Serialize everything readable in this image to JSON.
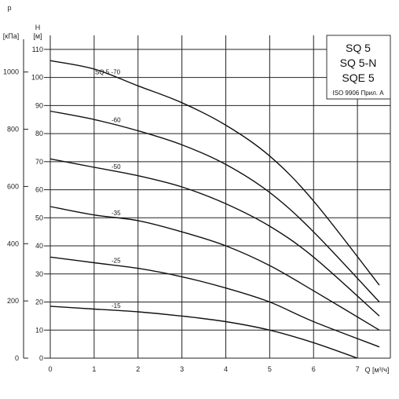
{
  "chart_data": {
    "type": "line",
    "title_lines": [
      "SQ 5",
      "SQ 5-N",
      "SQE 5"
    ],
    "note": "ISO 9906 Прил. А",
    "xlabel": "Q [м³/ч]",
    "ylabel_left_top": "p",
    "ylabel_left_bottom": "[кПа]",
    "ylabel_right_top": "H",
    "ylabel_right_bottom": "[м]",
    "xlim": [
      0,
      7.75
    ],
    "ylim": [
      0,
      115
    ],
    "x_ticks": [
      "0",
      "1",
      "2",
      "3",
      "4",
      "5",
      "6",
      "7"
    ],
    "h_ticks": [
      "0",
      "10",
      "20",
      "30",
      "40",
      "50",
      "60",
      "70",
      "80",
      "90",
      "100",
      "110"
    ],
    "p_ticks": [
      "0",
      "200",
      "400",
      "600",
      "800",
      "1000"
    ],
    "grid": true,
    "series": [
      {
        "name": "SQ 5 -70",
        "x": [
          0,
          1,
          2,
          3,
          4,
          5,
          6,
          7.5
        ],
        "y": [
          106,
          103,
          97,
          91,
          83,
          72,
          56,
          26
        ]
      },
      {
        "name": "-60",
        "x": [
          0,
          1,
          2,
          3,
          4,
          5,
          6,
          7.5
        ],
        "y": [
          88,
          85,
          81,
          76,
          69,
          59,
          45,
          20
        ]
      },
      {
        "name": "-50",
        "x": [
          0,
          1,
          2,
          3,
          4,
          5,
          6,
          7.5
        ],
        "y": [
          71,
          68,
          65,
          61,
          55,
          47,
          36,
          15
        ]
      },
      {
        "name": "-35",
        "x": [
          0,
          1,
          2,
          3,
          4,
          5,
          6,
          7.5
        ],
        "y": [
          54,
          51,
          49,
          45,
          40,
          33,
          24,
          10
        ]
      },
      {
        "name": "-25",
        "x": [
          0,
          1,
          2,
          3,
          4,
          5,
          6,
          7.5
        ],
        "y": [
          36,
          34,
          32,
          29,
          25,
          20,
          13,
          4
        ]
      },
      {
        "name": "-15",
        "x": [
          0,
          1,
          2,
          3,
          4,
          5,
          6,
          7
        ],
        "y": [
          18.5,
          17.5,
          16.5,
          15,
          13,
          10,
          5.5,
          0
        ]
      }
    ]
  }
}
